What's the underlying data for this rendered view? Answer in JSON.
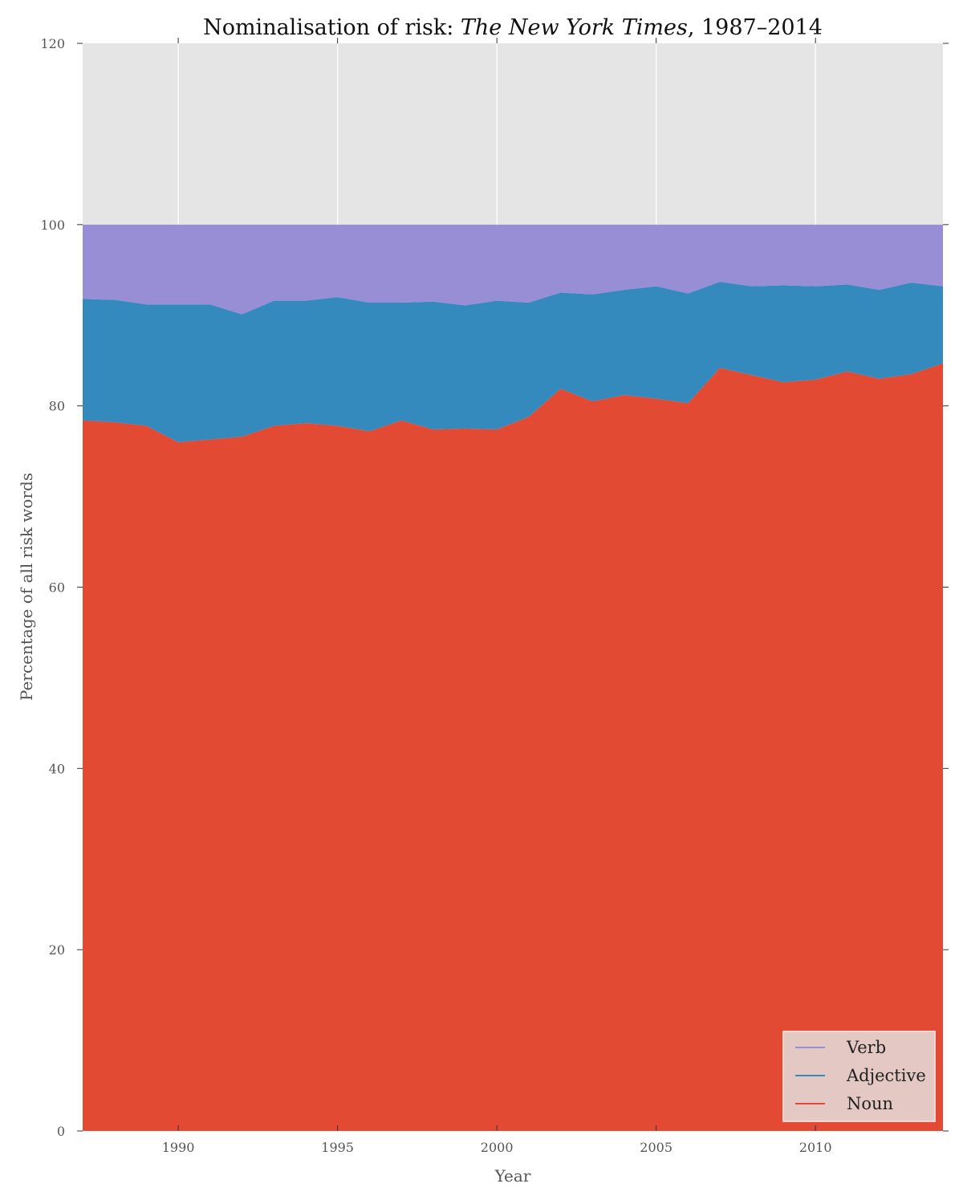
{
  "chart_data": {
    "type": "area",
    "stacked": true,
    "title": {
      "prefix": "Nominalisation of risk: ",
      "italic": "The New York Times",
      "suffix": ", 1987–2014"
    },
    "xlabel": "Year",
    "ylabel": "Percentage of all risk words",
    "xlim": [
      1987,
      2014
    ],
    "ylim": [
      0,
      120
    ],
    "xticks": [
      1990,
      1995,
      2000,
      2005,
      2010
    ],
    "yticks": [
      0,
      20,
      40,
      60,
      80,
      100,
      120
    ],
    "grid": true,
    "legend_position": "bottom-right",
    "x": [
      1987,
      1988,
      1989,
      1990,
      1991,
      1992,
      1993,
      1994,
      1995,
      1996,
      1997,
      1998,
      1999,
      2000,
      2001,
      2002,
      2003,
      2004,
      2005,
      2006,
      2007,
      2008,
      2009,
      2010,
      2011,
      2012,
      2013,
      2014
    ],
    "series": [
      {
        "name": "Noun",
        "color": "#e24a33",
        "values": [
          78.4,
          78.2,
          77.8,
          76.0,
          76.3,
          76.6,
          77.8,
          78.1,
          77.8,
          77.2,
          78.4,
          77.4,
          77.5,
          77.4,
          78.8,
          81.9,
          80.5,
          81.2,
          80.8,
          80.3,
          84.2,
          83.4,
          82.6,
          82.9,
          83.8,
          83.0,
          83.5,
          84.7
        ]
      },
      {
        "name": "Adjective",
        "color": "#348abd",
        "values": [
          13.4,
          13.5,
          13.4,
          15.2,
          14.9,
          13.5,
          13.8,
          13.5,
          14.2,
          14.2,
          13.0,
          14.1,
          13.6,
          14.2,
          12.6,
          10.6,
          11.8,
          11.6,
          12.4,
          12.1,
          9.5,
          9.8,
          10.7,
          10.3,
          9.6,
          9.8,
          10.1,
          8.5
        ]
      },
      {
        "name": "Verb",
        "color": "#988ed5",
        "values": [
          8.2,
          8.3,
          8.8,
          8.8,
          8.8,
          9.9,
          8.4,
          8.4,
          8.0,
          8.6,
          8.6,
          8.5,
          8.9,
          8.4,
          8.6,
          7.5,
          7.7,
          7.2,
          6.8,
          7.6,
          6.3,
          6.8,
          6.7,
          6.8,
          6.6,
          7.2,
          6.4,
          6.8
        ]
      }
    ],
    "legend_order": [
      "Verb",
      "Adjective",
      "Noun"
    ],
    "plot_background": "#e5e5e5"
  }
}
